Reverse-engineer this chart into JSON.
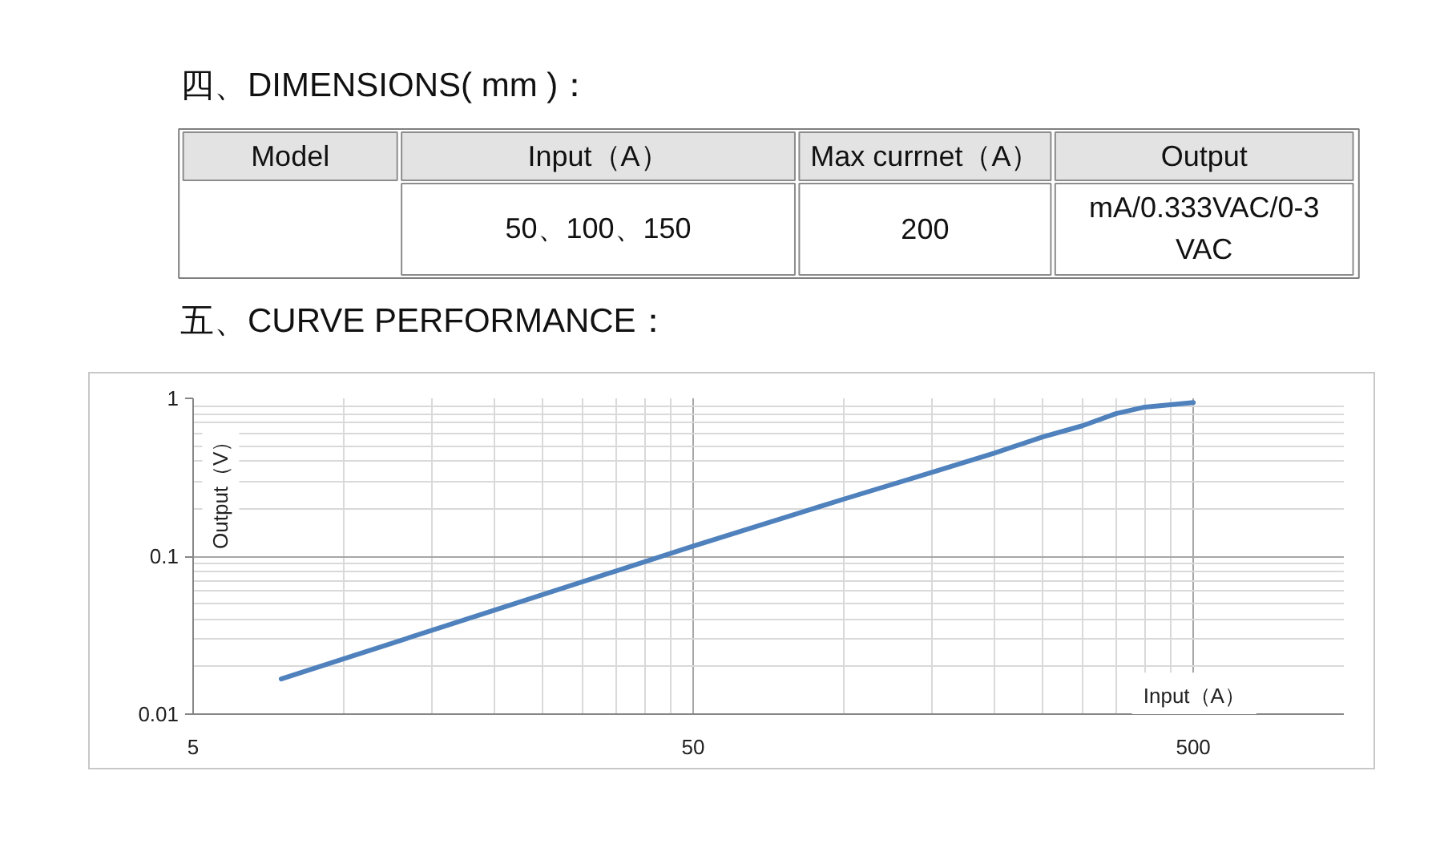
{
  "chart_data": [
    {
      "type": "other",
      "title": "四、DIMENSIONS( mm )：",
      "categories": [
        "Model",
        "Input（A）",
        "Max currnet（A）",
        "Output"
      ],
      "annotations": [
        "50、100、150",
        "200",
        "mA/0.333VAC/0-3 VAC"
      ]
    },
    {
      "type": "line",
      "title": "五、CURVE PERFORMANCE：",
      "xlabel": "Input（A）",
      "ylabel": "Output（V）",
      "log": "xy",
      "grid": true,
      "line_style": "solid",
      "x": [
        7.5,
        50,
        100,
        150,
        200,
        250,
        300,
        350,
        400,
        450,
        500
      ],
      "values": [
        0.0167,
        0.116,
        0.23,
        0.34,
        0.45,
        0.57,
        0.67,
        0.8,
        0.88,
        0.91,
        0.94
      ],
      "color": "#4f81bd",
      "xlim": [
        5,
        1000
      ],
      "ylim": [
        0.01,
        1
      ],
      "xticks": [
        5,
        {
          "value": 10,
          "label": null
        },
        {
          "value": 15,
          "label": null
        },
        {
          "value": 20,
          "label": null
        },
        {
          "value": 25,
          "label": null
        },
        {
          "value": 30,
          "label": null
        },
        {
          "value": 35,
          "label": null
        },
        {
          "value": 40,
          "label": null
        },
        {
          "value": 45,
          "label": null
        },
        50,
        {
          "value": 100,
          "label": null
        },
        {
          "value": 150,
          "label": null
        },
        {
          "value": 200,
          "label": null
        },
        {
          "value": 250,
          "label": null
        },
        {
          "value": 300,
          "label": null
        },
        {
          "value": 350,
          "label": null
        },
        {
          "value": 400,
          "label": null
        },
        {
          "value": 450,
          "label": null
        },
        500
      ],
      "yticks": [
        0.01,
        {
          "value": 0.02,
          "label": null
        },
        {
          "value": 0.03,
          "label": null
        },
        {
          "value": 0.04,
          "label": null
        },
        {
          "value": 0.05,
          "label": null
        },
        {
          "value": 0.06,
          "label": null
        },
        {
          "value": 0.07,
          "label": null
        },
        {
          "value": 0.08,
          "label": null
        },
        {
          "value": 0.09,
          "label": null
        },
        0.1,
        {
          "value": 0.2,
          "label": null
        },
        {
          "value": 0.3,
          "label": null
        },
        {
          "value": 0.4,
          "label": null
        },
        {
          "value": 0.5,
          "label": null
        },
        {
          "value": 0.6,
          "label": null
        },
        {
          "value": 0.7,
          "label": null
        },
        {
          "value": 0.8,
          "label": null
        },
        {
          "value": 0.9,
          "label": null
        },
        1
      ]
    }
  ]
}
